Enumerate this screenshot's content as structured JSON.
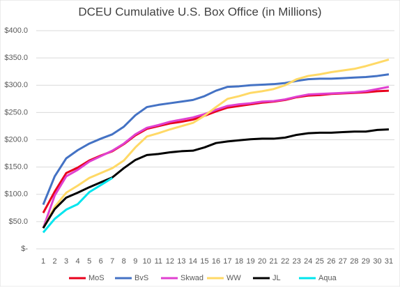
{
  "chart_data": {
    "type": "line",
    "title": "DCEU Cumulative U.S. Box Office (in Millions)",
    "x": [
      1,
      2,
      3,
      4,
      5,
      6,
      7,
      8,
      9,
      10,
      11,
      12,
      13,
      14,
      15,
      16,
      17,
      18,
      19,
      20,
      21,
      22,
      23,
      24,
      25,
      26,
      27,
      28,
      29,
      30,
      31
    ],
    "xlim": [
      1,
      31
    ],
    "ylim": [
      0,
      400
    ],
    "yticks": [
      {
        "value": 0,
        "label": "$-"
      },
      {
        "value": 50,
        "label": "$50.0"
      },
      {
        "value": 100,
        "label": "$100.0"
      },
      {
        "value": 150,
        "label": "$150.0"
      },
      {
        "value": 200,
        "label": "$200.0"
      },
      {
        "value": 250,
        "label": "$250.0"
      },
      {
        "value": 300,
        "label": "$300.0"
      },
      {
        "value": 350,
        "label": "$350.0"
      },
      {
        "value": 400,
        "label": "$400.0"
      }
    ],
    "grid": true,
    "legend": "bottom",
    "series": [
      {
        "name": "MoS",
        "color": "#e8001c",
        "values": [
          66,
          105,
          139,
          149,
          162,
          171,
          179,
          192,
          208,
          220,
          225,
          230,
          233,
          237,
          244,
          252,
          259,
          262,
          265,
          268,
          270,
          273,
          278,
          281,
          282,
          284,
          285,
          286,
          287,
          289,
          290
        ]
      },
      {
        "name": "BvS",
        "color": "#4472c4",
        "values": [
          81,
          133,
          166,
          181,
          193,
          202,
          210,
          224,
          245,
          260,
          264,
          267,
          270,
          273,
          280,
          290,
          297,
          298,
          300,
          301,
          302,
          304,
          308,
          311,
          312,
          312,
          313,
          314,
          315,
          317,
          320
        ]
      },
      {
        "name": "Skwad",
        "color": "#e040d0",
        "values": [
          38,
          98,
          133,
          145,
          160,
          170,
          180,
          193,
          210,
          222,
          227,
          233,
          237,
          241,
          247,
          255,
          262,
          265,
          267,
          270,
          271,
          274,
          279,
          283,
          284,
          285,
          286,
          287,
          289,
          293,
          297
        ]
      },
      {
        "name": "WW",
        "color": "#ffd966",
        "values": [
          38,
          77,
          103,
          116,
          130,
          139,
          148,
          162,
          186,
          206,
          212,
          219,
          225,
          231,
          244,
          260,
          275,
          280,
          286,
          289,
          293,
          300,
          311,
          317,
          320,
          324,
          327,
          330,
          335,
          341,
          347
        ]
      },
      {
        "name": "JL",
        "color": "#000000",
        "values": [
          38,
          73,
          94,
          103,
          113,
          122,
          131,
          148,
          163,
          172,
          174,
          177,
          179,
          180,
          186,
          194,
          197,
          199,
          201,
          202,
          202,
          204,
          209,
          212,
          213,
          213,
          214,
          215,
          215,
          218,
          219
        ]
      },
      {
        "name": "Aqua",
        "color": "#00e5ee",
        "values": [
          30,
          55,
          72,
          82,
          104,
          117,
          130,
          null,
          null,
          null,
          null,
          null,
          null,
          null,
          null,
          null,
          null,
          null,
          null,
          null,
          null,
          null,
          null,
          null,
          null,
          null,
          null,
          null,
          null,
          null,
          null
        ]
      }
    ]
  }
}
